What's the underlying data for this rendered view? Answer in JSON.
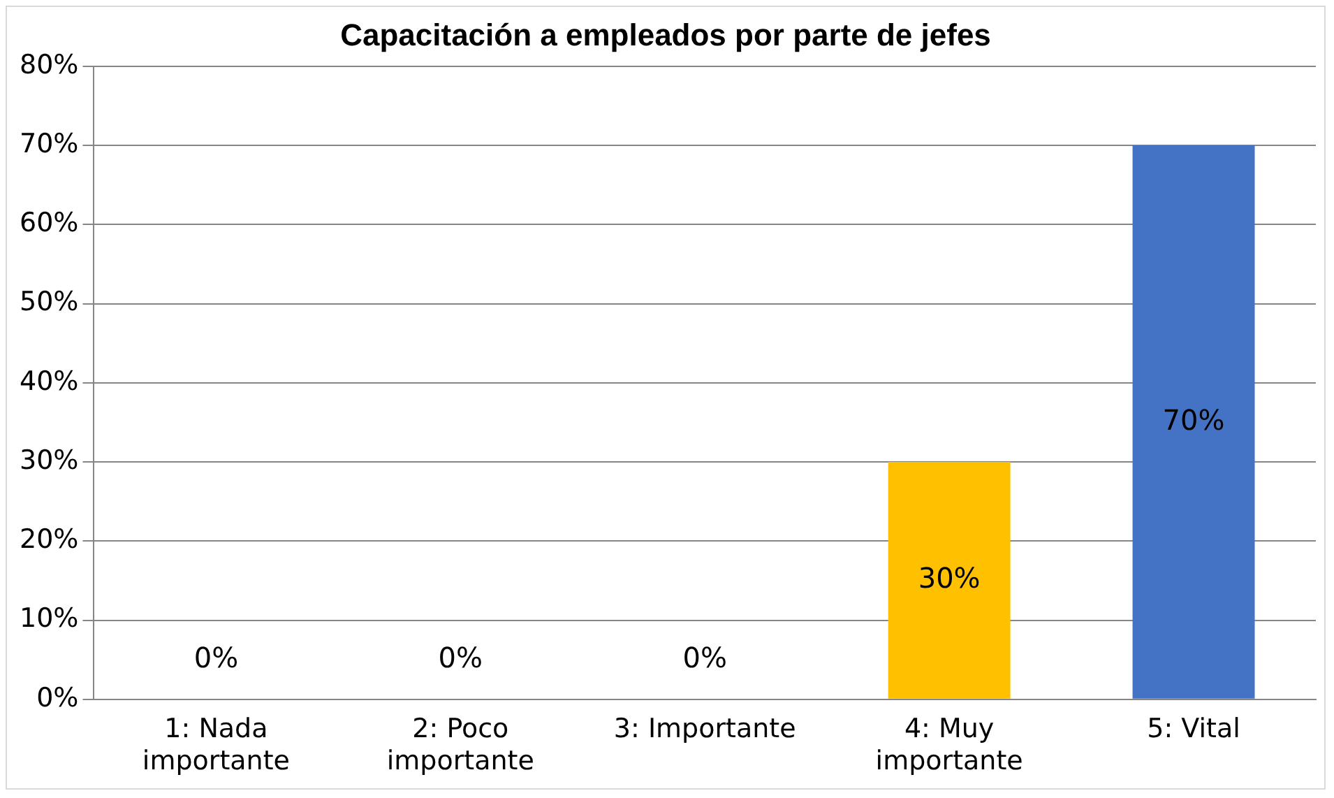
{
  "chart_data": {
    "type": "bar",
    "title": "Capacitación a empleados por parte de jefes",
    "categories": [
      "1: Nada importante",
      "2: Poco importante",
      "3: Importante",
      "4: Muy importante",
      "5: Vital"
    ],
    "values": [
      0,
      0,
      0,
      30,
      70
    ],
    "colors": [
      "#4472c4",
      "#4472c4",
      "#4472c4",
      "#ffc000",
      "#4472c4"
    ],
    "value_labels": [
      "0%",
      "0%",
      "0%",
      "30%",
      "70%"
    ],
    "ylim": [
      0,
      80
    ],
    "yticks": [
      {
        "value": 0,
        "label": "0%"
      },
      {
        "value": 10,
        "label": "10%"
      },
      {
        "value": 20,
        "label": "20%"
      },
      {
        "value": 30,
        "label": "30%"
      },
      {
        "value": 40,
        "label": "40%"
      },
      {
        "value": 50,
        "label": "50%"
      },
      {
        "value": 60,
        "label": "60%"
      },
      {
        "value": 70,
        "label": "70%"
      },
      {
        "value": 80,
        "label": "80%"
      }
    ],
    "grid": "y",
    "legend": false
  }
}
